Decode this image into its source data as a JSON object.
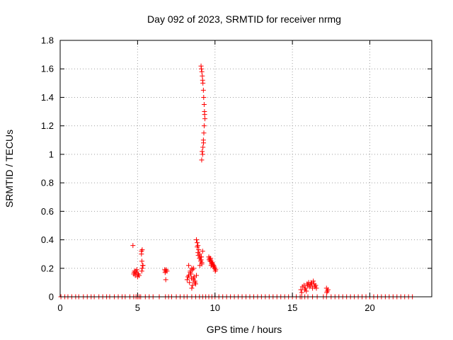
{
  "chart_data": {
    "type": "scatter",
    "title": "Day 092 of 2023, SRMTID for receiver nrmg",
    "xlabel": "GPS time / hours",
    "ylabel": "SRMTID / TECUs",
    "xlim": [
      0,
      24
    ],
    "ylim": [
      0,
      1.8
    ],
    "xticks": [
      0,
      5,
      10,
      15,
      20
    ],
    "xtick_labels": [
      "0",
      "5",
      "10",
      "15",
      "20"
    ],
    "yticks": [
      0,
      0.2,
      0.4,
      0.6,
      0.8,
      1.0,
      1.2,
      1.4,
      1.6,
      1.8
    ],
    "ytick_labels": [
      "0",
      "0.2",
      "0.4",
      "0.6",
      "0.8",
      "1",
      "1.2",
      "1.4",
      "1.6",
      "1.8"
    ],
    "grid": true,
    "marker": "+",
    "color": "#ff0000",
    "series": [
      {
        "name": "SRMTID",
        "x": [
          0.05,
          0.3,
          0.5,
          0.75,
          1.0,
          1.2,
          1.5,
          1.75,
          2.0,
          2.2,
          2.5,
          2.75,
          3.0,
          3.2,
          3.5,
          3.75,
          4.0,
          4.2,
          4.5,
          4.75,
          4.9,
          5.0,
          5.1,
          5.2,
          5.5,
          5.75,
          6.0,
          6.4,
          6.8,
          7.0,
          7.2,
          7.5,
          7.75,
          8.0,
          8.2,
          8.5,
          8.75,
          9.0,
          9.2,
          9.4,
          9.6,
          9.8,
          10.0,
          10.25,
          10.5,
          10.75,
          11.0,
          11.25,
          11.5,
          11.75,
          12.0,
          12.25,
          12.5,
          12.75,
          13.0,
          13.25,
          13.5,
          13.75,
          14.0,
          14.25,
          14.5,
          14.75,
          15.0,
          15.25,
          15.5,
          15.6,
          15.8,
          16.0,
          16.3,
          16.6,
          17.0,
          17.2,
          17.5,
          17.75,
          18.0,
          18.25,
          18.5,
          18.75,
          19.0,
          19.25,
          19.5,
          19.75,
          20.0,
          20.25,
          20.5,
          20.75,
          21.0,
          21.25,
          21.5,
          21.75,
          22.0,
          22.25,
          22.5,
          22.75,
          4.75,
          4.8,
          4.85,
          4.9,
          4.95,
          5.0,
          5.05,
          5.1,
          4.7,
          4.78,
          4.88,
          4.98,
          5.25,
          5.3,
          5.28,
          5.33,
          5.27,
          5.3,
          5.35,
          5.25,
          6.75,
          6.8,
          6.85,
          6.9,
          6.82,
          6.78,
          8.2,
          8.3,
          8.4,
          8.5,
          8.6,
          8.7,
          8.3,
          8.45,
          8.55,
          8.65,
          8.35,
          8.5,
          8.6,
          8.25,
          8.4,
          8.55,
          8.7,
          8.8,
          8.75,
          8.62,
          8.48,
          8.8,
          8.85,
          8.9,
          8.95,
          9.0,
          9.05,
          9.1,
          9.15,
          9.2,
          8.85,
          8.92,
          9.0,
          9.08,
          9.15,
          8.9,
          9.02,
          9.12,
          9.1,
          9.12,
          9.15,
          9.18,
          9.2,
          9.22,
          9.25,
          9.27,
          9.3,
          9.32,
          9.35,
          9.3,
          9.28,
          9.25,
          9.22,
          9.2,
          9.17,
          9.14,
          9.26,
          9.33,
          9.6,
          9.65,
          9.7,
          9.75,
          9.8,
          9.85,
          9.9,
          9.95,
          10.0,
          10.05,
          9.68,
          9.78,
          9.88,
          9.98,
          9.72,
          9.82,
          9.92,
          10.02,
          9.62,
          9.75,
          15.55,
          15.65,
          15.75,
          15.85,
          15.95,
          16.05,
          16.15,
          16.25,
          16.35,
          16.45,
          16.55,
          15.6,
          15.8,
          16.0,
          16.2,
          16.4,
          16.1,
          16.3,
          15.9,
          16.5,
          17.2,
          17.25,
          17.3,
          17.22
        ],
        "y": [
          0,
          0,
          0,
          0,
          0,
          0,
          0,
          0,
          0,
          0,
          0,
          0,
          0,
          0,
          0,
          0,
          0,
          0,
          0,
          0,
          0,
          0,
          0,
          0,
          0,
          0,
          0,
          0,
          0,
          0,
          0,
          0,
          0,
          0,
          0,
          0,
          0,
          0,
          0,
          0,
          0,
          0,
          0,
          0,
          0,
          0,
          0,
          0,
          0,
          0,
          0,
          0,
          0,
          0,
          0,
          0,
          0,
          0,
          0,
          0,
          0,
          0,
          0,
          0,
          0,
          0,
          0,
          0,
          0,
          0,
          0,
          0,
          0,
          0,
          0,
          0,
          0,
          0,
          0,
          0,
          0,
          0,
          0,
          0,
          0,
          0,
          0,
          0,
          0,
          0,
          0,
          0,
          0,
          0,
          0.16,
          0.18,
          0.15,
          0.17,
          0.19,
          0.14,
          0.16,
          0.15,
          0.36,
          0.17,
          0.18,
          0.16,
          0.32,
          0.33,
          0.25,
          0.22,
          0.18,
          0.2,
          0.22,
          0.3,
          0.19,
          0.18,
          0.19,
          0.18,
          0.12,
          0.17,
          0.12,
          0.15,
          0.18,
          0.2,
          0.13,
          0.1,
          0.22,
          0.16,
          0.08,
          0.14,
          0.1,
          0.06,
          0.12,
          0.14,
          0.17,
          0.19,
          0.11,
          0.15,
          0.09,
          0.2,
          0.13,
          0.4,
          0.38,
          0.36,
          0.33,
          0.3,
          0.28,
          0.26,
          0.24,
          0.32,
          0.35,
          0.29,
          0.27,
          0.25,
          0.23,
          0.31,
          0.22,
          0.28,
          1.62,
          1.6,
          1.58,
          1.55,
          1.52,
          1.5,
          1.45,
          1.4,
          1.35,
          1.3,
          1.25,
          1.2,
          1.15,
          1.1,
          1.05,
          1.0,
          1.02,
          0.96,
          1.08,
          1.28,
          0.28,
          0.27,
          0.26,
          0.25,
          0.24,
          0.23,
          0.22,
          0.21,
          0.2,
          0.19,
          0.25,
          0.23,
          0.21,
          0.2,
          0.27,
          0.24,
          0.22,
          0.18,
          0.26,
          0.22,
          0.05,
          0.07,
          0.08,
          0.06,
          0.09,
          0.1,
          0.08,
          0.09,
          0.11,
          0.07,
          0.06,
          0.03,
          0.05,
          0.08,
          0.1,
          0.09,
          0.07,
          0.06,
          0.04,
          0.08,
          0.06,
          0.04,
          0.05,
          0.03
        ]
      }
    ]
  }
}
